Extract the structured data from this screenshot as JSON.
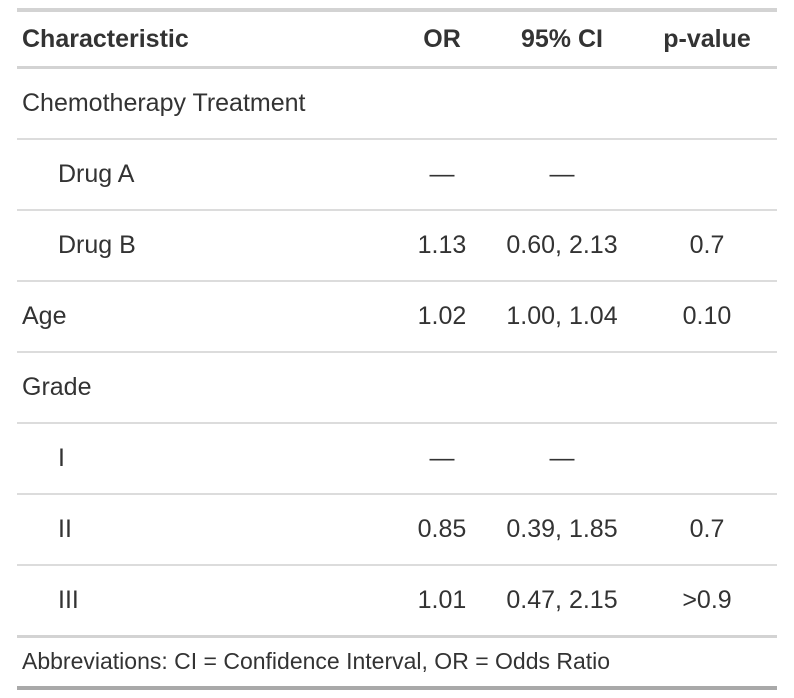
{
  "chart_data": {
    "type": "table",
    "columns": [
      "Characteristic",
      "OR",
      "95% CI",
      "p-value"
    ],
    "column_align": [
      "left",
      "center",
      "center",
      "center"
    ],
    "rows": [
      {
        "label": "Chemotherapy Treatment",
        "or": "",
        "ci": "",
        "p": "",
        "indent": false
      },
      {
        "label": "Drug A",
        "or": "—",
        "ci": "—",
        "p": "",
        "indent": true
      },
      {
        "label": "Drug B",
        "or": "1.13",
        "ci": "0.60, 2.13",
        "p": "0.7",
        "indent": true
      },
      {
        "label": "Age",
        "or": "1.02",
        "ci": "1.00, 1.04",
        "p": "0.10",
        "indent": false
      },
      {
        "label": "Grade",
        "or": "",
        "ci": "",
        "p": "",
        "indent": false
      },
      {
        "label": "I",
        "or": "—",
        "ci": "—",
        "p": "",
        "indent": true
      },
      {
        "label": "II",
        "or": "0.85",
        "ci": "0.39, 1.85",
        "p": "0.7",
        "indent": true
      },
      {
        "label": "III",
        "or": "1.01",
        "ci": "0.47, 2.15",
        "p": ">0.9",
        "indent": true
      }
    ],
    "footnote": "Abbreviations: CI = Confidence Interval, OR = Odds Ratio",
    "colors": {
      "text": "#333333",
      "border_light": "#d3d3d3",
      "row_divider": "#dcdcdc",
      "border_bottom": "#a9a9a9",
      "background": "#ffffff"
    }
  }
}
